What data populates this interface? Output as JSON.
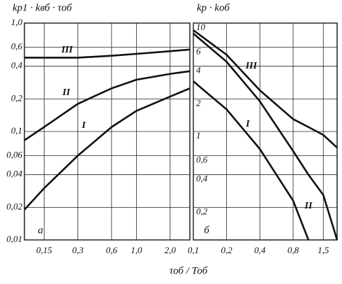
{
  "x_axis_label": "τоб / Тоб",
  "chart_data": [
    {
      "type": "line",
      "title": "kр1 · kвб · τоб",
      "panel_label": "а",
      "log_x": true,
      "log_y": true,
      "grid": true,
      "x": [
        0.1,
        0.15,
        0.3,
        0.6,
        1.0,
        2.0,
        3.0
      ],
      "xlim": [
        0.1,
        3.0
      ],
      "xticks": [
        {
          "value": 0.15,
          "label": "0,15"
        },
        {
          "value": 0.3,
          "label": "0,3"
        },
        {
          "value": 0.6,
          "label": "0,6"
        },
        {
          "value": 1.0,
          "label": "1,0"
        },
        {
          "value": 2.0,
          "label": "2,0"
        }
      ],
      "ylim": [
        0.01,
        1.0
      ],
      "yticks": [
        {
          "value": 1.0,
          "label": "1,0"
        },
        {
          "value": 0.6,
          "label": "0,6"
        },
        {
          "value": 0.4,
          "label": "0,4"
        },
        {
          "value": 0.2,
          "label": "0,2"
        },
        {
          "value": 0.1,
          "label": "0,1"
        },
        {
          "value": 0.06,
          "label": "0,06"
        },
        {
          "value": 0.04,
          "label": "0,04"
        },
        {
          "value": 0.02,
          "label": "0,02"
        },
        {
          "value": 0.01,
          "label": "0,01"
        }
      ],
      "series": [
        {
          "name": "III",
          "color": "#111111",
          "values": [
            0.48,
            0.48,
            0.48,
            0.5,
            0.52,
            0.55,
            0.57
          ]
        },
        {
          "name": "II",
          "color": "#111111",
          "values": [
            0.083,
            0.11,
            0.18,
            0.25,
            0.3,
            0.34,
            0.36
          ]
        },
        {
          "name": "I",
          "color": "#111111",
          "values": [
            0.019,
            0.03,
            0.06,
            0.11,
            0.155,
            0.21,
            0.25
          ]
        }
      ]
    },
    {
      "type": "line",
      "title": "kр · kоб",
      "panel_label": "б",
      "log_x": true,
      "log_y": true,
      "grid": true,
      "x": [
        0.1,
        0.2,
        0.4,
        0.8,
        1.1,
        1.5,
        2.0
      ],
      "xlim": [
        0.1,
        2.0
      ],
      "xticks": [
        {
          "value": 0.1,
          "label": "0,1"
        },
        {
          "value": 0.2,
          "label": "0,2"
        },
        {
          "value": 0.4,
          "label": "0,4"
        },
        {
          "value": 0.8,
          "label": "0,8"
        },
        {
          "value": 1.5,
          "label": "1,5"
        }
      ],
      "ylim": [
        0.1,
        10
      ],
      "yticks": [
        10,
        6,
        4,
        2,
        1,
        {
          "value": 0.6,
          "label": "0,6"
        },
        {
          "value": 0.4,
          "label": "0,4"
        },
        {
          "value": 0.2,
          "label": "0,2"
        }
      ],
      "series": [
        {
          "name": "III",
          "color": "#111111",
          "values": [
            8.6,
            5.1,
            2.4,
            1.3,
            1.1,
            0.93,
            0.71
          ]
        },
        {
          "name": "II",
          "color": "#111111",
          "values": [
            8.0,
            4.4,
            1.9,
            0.66,
            0.4,
            0.26,
            0.1
          ]
        },
        {
          "name": "I",
          "color": "#111111",
          "values": [
            2.9,
            1.6,
            0.69,
            0.23,
            0.1,
            null,
            null
          ]
        }
      ]
    }
  ]
}
